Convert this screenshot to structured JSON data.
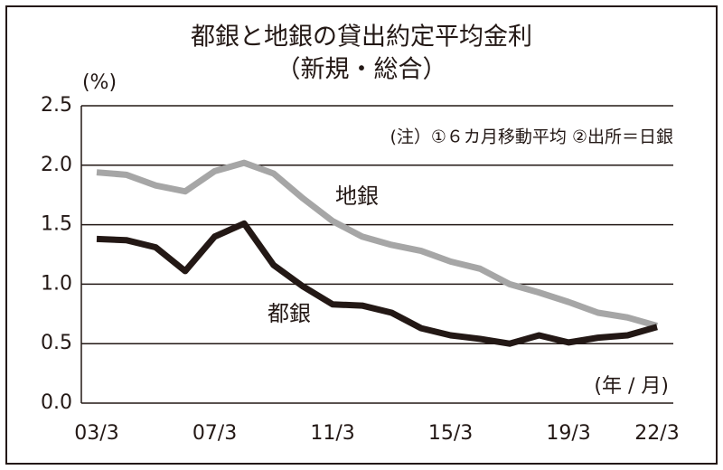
{
  "chart_data": {
    "type": "line",
    "title": "都銀と地銀の貸出約定平均金利",
    "subtitle": "（新規・総合）",
    "y_unit": "(%)",
    "x_unit": "(年 / 月)",
    "annotation": "(注）①６カ月移動平均 ②出所＝日銀",
    "categories": [
      "03/3",
      null,
      null,
      null,
      "07/3",
      null,
      null,
      null,
      "11/3",
      null,
      null,
      null,
      "15/3",
      null,
      null,
      null,
      "19/3",
      null,
      null,
      "22/3"
    ],
    "series": [
      {
        "name": "地銀",
        "color": "#a6a6a6",
        "values": [
          1.94,
          1.92,
          1.83,
          1.78,
          1.95,
          2.02,
          1.93,
          1.72,
          1.53,
          1.4,
          1.33,
          1.28,
          1.19,
          1.13,
          1.0,
          0.93,
          0.85,
          0.76,
          0.72,
          0.65
        ]
      },
      {
        "name": "都銀",
        "color": "#231815",
        "values": [
          1.38,
          1.37,
          1.31,
          1.11,
          1.4,
          1.51,
          1.16,
          0.98,
          0.83,
          0.82,
          0.76,
          0.63,
          0.57,
          0.54,
          0.5,
          0.57,
          0.51,
          0.55,
          0.57,
          0.64
        ]
      }
    ],
    "ylim": [
      0,
      2.5
    ],
    "yticks": [
      {
        "value": 0,
        "label": "0.0"
      },
      0.5,
      {
        "value": 1,
        "label": "1.0"
      },
      1.5,
      {
        "value": 2,
        "label": "2.0"
      },
      2.5
    ],
    "grid": true
  }
}
